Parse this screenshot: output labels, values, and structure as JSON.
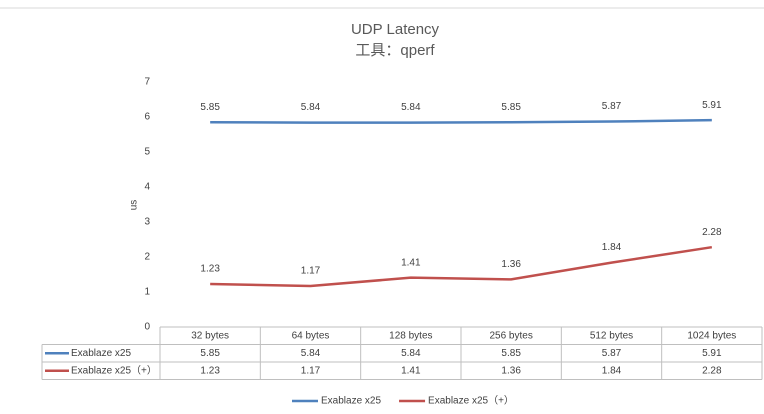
{
  "chart_data": {
    "type": "line",
    "title": "UDP Latency",
    "subtitle": "工具：qperf",
    "y_label": "us",
    "categories": [
      "32 bytes",
      "64 bytes",
      "128 bytes",
      "256 bytes",
      "512 bytes",
      "1024 bytes"
    ],
    "series": [
      {
        "name": "Exablaze x25",
        "color": "#4f81bd",
        "values": [
          5.85,
          5.84,
          5.84,
          5.85,
          5.87,
          5.91
        ]
      },
      {
        "name": "Exablaze x25（+）",
        "color": "#c0504d",
        "values": [
          1.23,
          1.17,
          1.41,
          1.36,
          1.84,
          2.28
        ]
      }
    ],
    "ylim": [
      0,
      7
    ],
    "yticks": [
      0,
      1,
      2,
      3,
      4,
      5,
      6,
      7
    ],
    "grid": false,
    "data_table": true,
    "legend": "bottom"
  }
}
